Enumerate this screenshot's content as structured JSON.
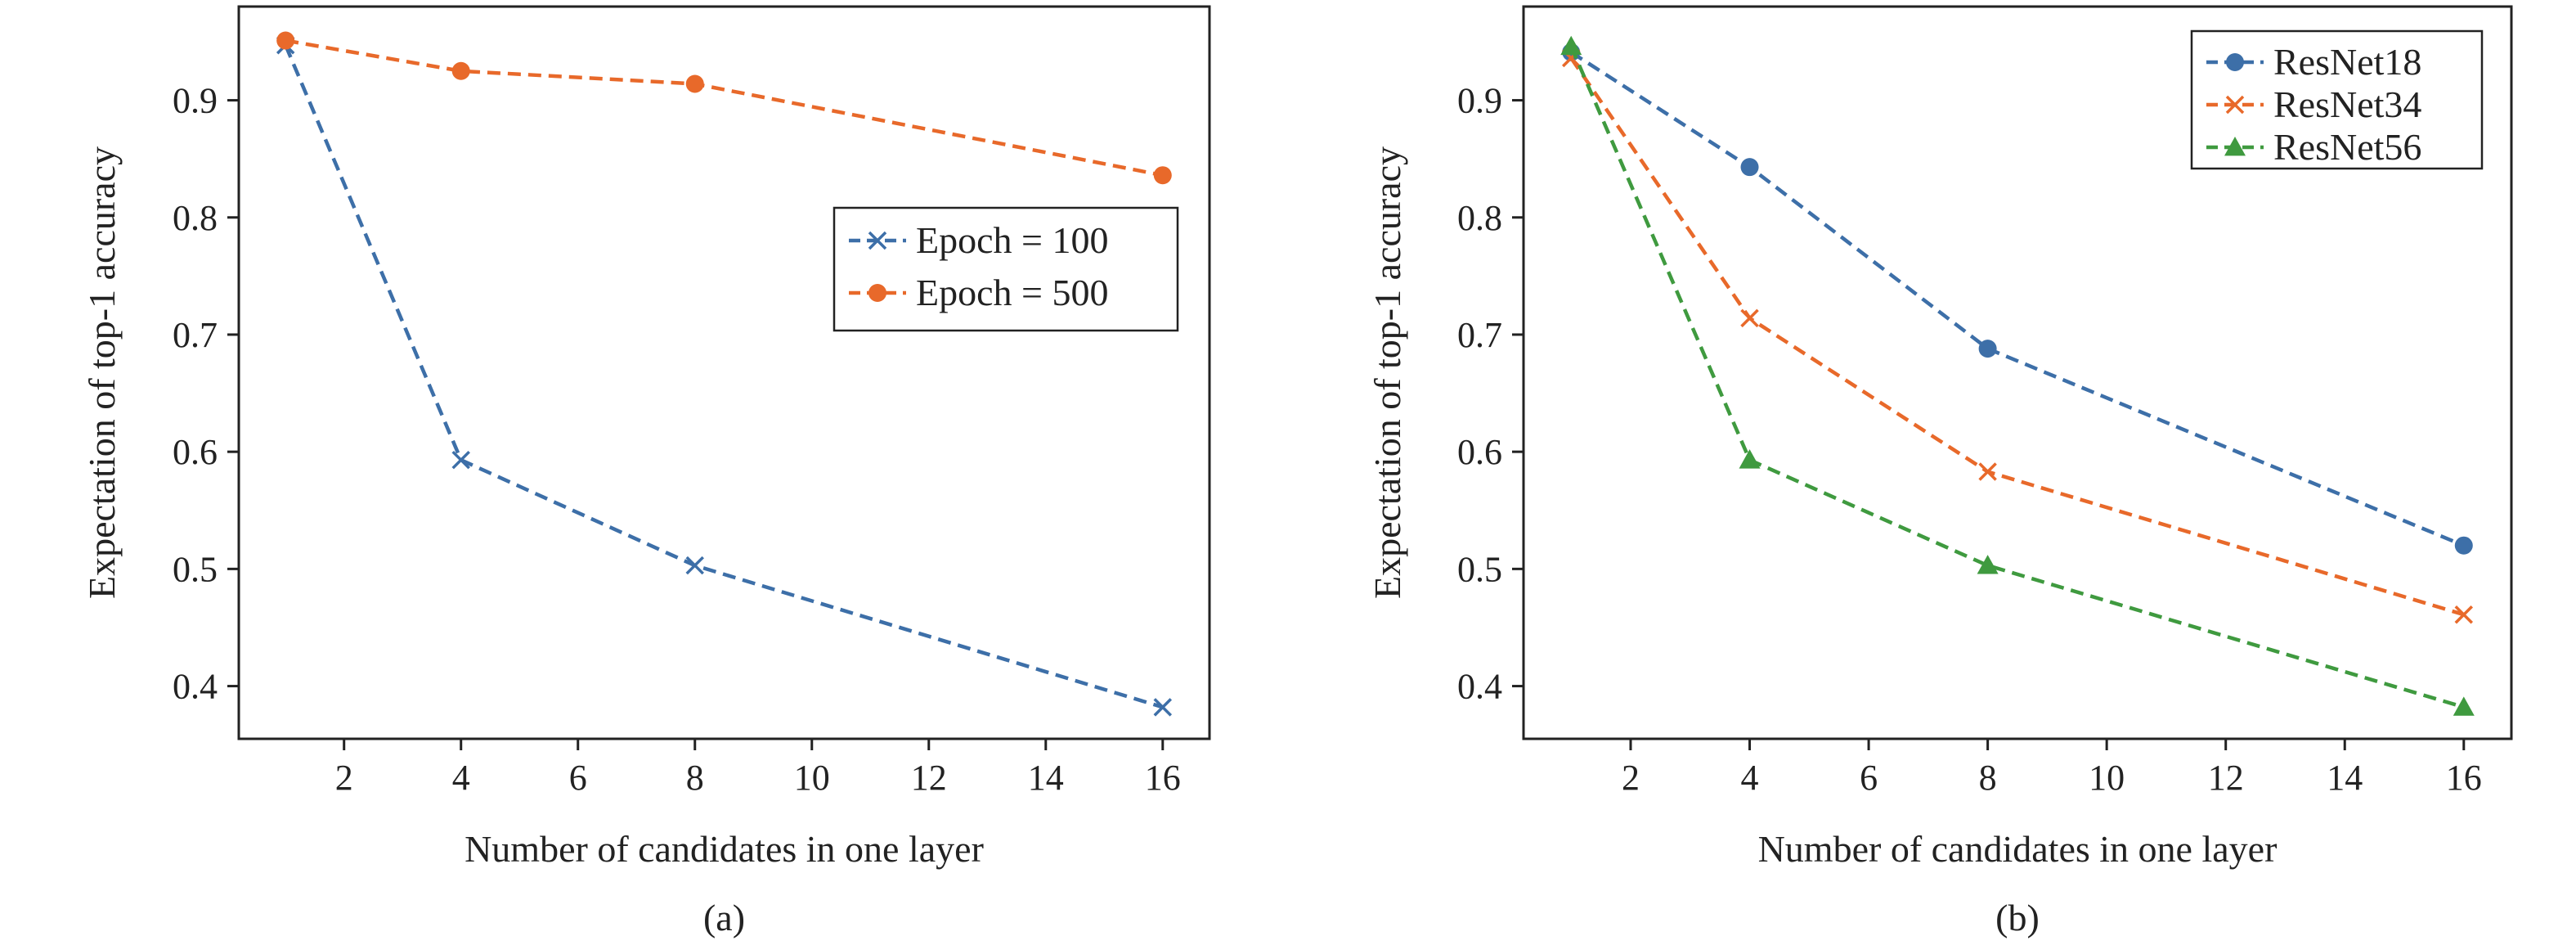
{
  "chart_data": [
    {
      "type": "line",
      "panel_label": "(a)",
      "xlabel": "Number of candidates in one layer",
      "ylabel": "Expectation of top-1 accuracy",
      "xlim": [
        0.2,
        16.8
      ],
      "ylim": [
        0.355,
        0.98
      ],
      "xticks": [
        2,
        4,
        6,
        8,
        10,
        12,
        14,
        16
      ],
      "yticks": [
        0.4,
        0.5,
        0.6,
        0.7,
        0.8,
        0.9
      ],
      "grid": false,
      "legend_position": "center-right",
      "series": [
        {
          "name": "Epoch = 100",
          "color": "#3d6fa8",
          "marker": "x",
          "x": [
            1,
            4,
            8,
            16
          ],
          "y": [
            0.947,
            0.593,
            0.503,
            0.382
          ]
        },
        {
          "name": "Epoch = 500",
          "color": "#e8692a",
          "marker": "circle",
          "x": [
            1,
            4,
            8,
            16
          ],
          "y": [
            0.951,
            0.925,
            0.914,
            0.836
          ]
        }
      ]
    },
    {
      "type": "line",
      "panel_label": "(b)",
      "xlabel": "Number of candidates in one layer",
      "ylabel": "Expectation of top-1 accuracy",
      "xlim": [
        0.2,
        16.8
      ],
      "ylim": [
        0.355,
        0.98
      ],
      "xticks": [
        2,
        4,
        6,
        8,
        10,
        12,
        14,
        16
      ],
      "yticks": [
        0.4,
        0.5,
        0.6,
        0.7,
        0.8,
        0.9
      ],
      "grid": false,
      "legend_position": "top-right",
      "series": [
        {
          "name": "ResNet18",
          "color": "#3d6fa8",
          "marker": "circle",
          "x": [
            1,
            4,
            8,
            16
          ],
          "y": [
            0.941,
            0.843,
            0.688,
            0.52
          ]
        },
        {
          "name": "ResNet34",
          "color": "#e8692a",
          "marker": "x",
          "x": [
            1,
            4,
            8,
            16
          ],
          "y": [
            0.936,
            0.714,
            0.583,
            0.461
          ]
        },
        {
          "name": "ResNet56",
          "color": "#3f9a3f",
          "marker": "triangle",
          "x": [
            1,
            4,
            8,
            16
          ],
          "y": [
            0.946,
            0.593,
            0.503,
            0.382
          ]
        }
      ]
    }
  ]
}
